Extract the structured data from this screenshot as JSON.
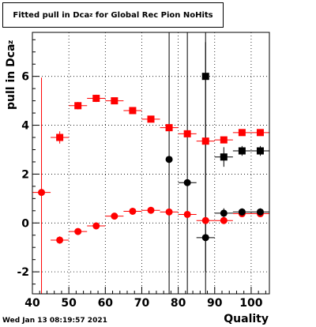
{
  "title": {
    "prefix": "Fitted pull in Dca",
    "sub": "z",
    "suffix": " for Global Rec Pion NoHits"
  },
  "ylabel": {
    "main": "pull in Dca",
    "sub": "z"
  },
  "xlabel": "Quality",
  "footer": "Wed Jan 13 08:19:57 2021",
  "colors": {
    "red": "#ff0000",
    "black": "#000000"
  },
  "chart_data": {
    "type": "scatter",
    "xlim": [
      40,
      105
    ],
    "ylim": [
      -2.9,
      7.8
    ],
    "xticks": [
      40,
      50,
      60,
      70,
      80,
      90,
      100
    ],
    "yticks": [
      -2,
      0,
      2,
      4,
      6
    ],
    "grid": true,
    "series": [
      {
        "marker": "square",
        "color": "#ff0000",
        "points": [
          {
            "x": 47.5,
            "y": 3.5,
            "yerr": 0.25,
            "xerr": 2.5
          },
          {
            "x": 52.5,
            "y": 4.8,
            "yerr": 0.15,
            "xerr": 2.5
          },
          {
            "x": 57.5,
            "y": 5.1,
            "yerr": 0.15,
            "xerr": 2.5
          },
          {
            "x": 62.5,
            "y": 5.0,
            "yerr": 0.1,
            "xerr": 2.5
          },
          {
            "x": 67.5,
            "y": 4.6,
            "yerr": 0.1,
            "xerr": 2.5
          },
          {
            "x": 72.5,
            "y": 4.25,
            "yerr": 0.1,
            "xerr": 2.5
          },
          {
            "x": 77.5,
            "y": 3.9,
            "yerr": 0.1,
            "xerr": 2.5
          },
          {
            "x": 82.5,
            "y": 3.65,
            "yerr": 0.1,
            "xerr": 2.5
          },
          {
            "x": 87.5,
            "y": 3.35,
            "yerr": 0.1,
            "xerr": 2.5
          },
          {
            "x": 92.5,
            "y": 3.4,
            "yerr": 0.1,
            "xerr": 2.5
          },
          {
            "x": 97.5,
            "y": 3.7,
            "yerr": 0.1,
            "xerr": 2.5
          },
          {
            "x": 102.5,
            "y": 3.7,
            "yerr": 0.1,
            "xerr": 2.5
          }
        ]
      },
      {
        "marker": "circle",
        "color": "#ff0000",
        "points": [
          {
            "x": 42.5,
            "y": 1.25,
            "yerr": 4.7,
            "xerr": 2.5
          },
          {
            "x": 47.5,
            "y": -0.7,
            "yerr": 0.15,
            "xerr": 2.5
          },
          {
            "x": 52.5,
            "y": -0.35,
            "yerr": 0.1,
            "xerr": 2.5
          },
          {
            "x": 57.5,
            "y": -0.12,
            "yerr": 0.1,
            "xerr": 2.5
          },
          {
            "x": 62.5,
            "y": 0.28,
            "yerr": 0.1,
            "xerr": 2.5
          },
          {
            "x": 67.5,
            "y": 0.48,
            "yerr": 0.08,
            "xerr": 2.5
          },
          {
            "x": 72.5,
            "y": 0.52,
            "yerr": 0.08,
            "xerr": 2.5
          },
          {
            "x": 77.5,
            "y": 0.45,
            "yerr": 0.08,
            "xerr": 2.5
          },
          {
            "x": 82.5,
            "y": 0.35,
            "yerr": 0.08,
            "xerr": 2.5
          },
          {
            "x": 87.5,
            "y": 0.1,
            "yerr": 0.08,
            "xerr": 2.5
          },
          {
            "x": 92.5,
            "y": 0.1,
            "yerr": 0.08,
            "xerr": 2.5
          },
          {
            "x": 97.5,
            "y": 0.38,
            "yerr": 0.08,
            "xerr": 2.5
          },
          {
            "x": 102.5,
            "y": 0.38,
            "yerr": 0.08,
            "xerr": 2.5
          }
        ]
      },
      {
        "marker": "square",
        "color": "#000000",
        "points": [
          {
            "x": 87.5,
            "y": 6.0,
            "yerr": 8.0,
            "xerr": 0
          },
          {
            "x": 92.5,
            "y": 2.7,
            "yerr": 0.4,
            "xerr": 2.5
          },
          {
            "x": 97.5,
            "y": 2.95,
            "yerr": 0.2,
            "xerr": 2.5
          },
          {
            "x": 102.5,
            "y": 2.95,
            "yerr": 0.2,
            "xerr": 2.5
          }
        ]
      },
      {
        "marker": "circle",
        "color": "#000000",
        "points": [
          {
            "x": 77.5,
            "y": 2.6,
            "yerr": 8.0,
            "xerr": 0
          },
          {
            "x": 82.5,
            "y": 1.65,
            "yerr": 8.0,
            "xerr": 2.5
          },
          {
            "x": 87.5,
            "y": -0.6,
            "yerr": 8.0,
            "xerr": 2.5
          },
          {
            "x": 92.5,
            "y": 0.4,
            "yerr": 0.2,
            "xerr": 2.5
          },
          {
            "x": 97.5,
            "y": 0.45,
            "yerr": 0.15,
            "xerr": 2.5
          },
          {
            "x": 102.5,
            "y": 0.45,
            "yerr": 0.15,
            "xerr": 2.5
          }
        ]
      }
    ]
  }
}
